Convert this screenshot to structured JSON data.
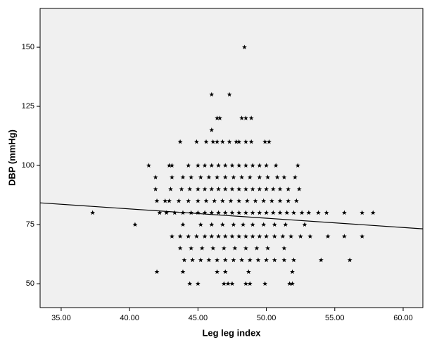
{
  "chart_data": {
    "type": "scatter",
    "x_label": "Leg leg index",
    "y_label": "DBP (mmHg)",
    "xlim": [
      33.46,
      61.44
    ],
    "ylim": [
      39.9,
      166.4
    ],
    "xticks": [
      {
        "value": 35,
        "label": "35.00"
      },
      {
        "value": 40,
        "label": "40.00"
      },
      {
        "value": 45,
        "label": "45.00"
      },
      {
        "value": 50,
        "label": "50.00"
      },
      {
        "value": 55,
        "label": "55.00"
      },
      {
        "value": 60,
        "label": "60.00"
      }
    ],
    "yticks": [
      50,
      75,
      100,
      125,
      150
    ],
    "color": "#000000",
    "background": "#f0f0f0",
    "x": [
      48.4,
      46.0,
      47.3,
      46.4,
      46.6,
      48.2,
      48.5,
      48.9,
      46.0,
      43.7,
      44.9,
      45.6,
      46.1,
      46.4,
      46.8,
      47.3,
      47.8,
      48.0,
      48.5,
      48.9,
      49.9,
      50.2,
      41.4,
      42.9,
      43.1,
      44.3,
      45.0,
      45.5,
      46.0,
      46.5,
      47.0,
      47.5,
      48.0,
      48.5,
      49.0,
      49.5,
      50.0,
      50.7,
      52.3,
      41.9,
      43.1,
      43.9,
      44.5,
      45.2,
      45.8,
      46.4,
      47.0,
      47.6,
      48.2,
      48.8,
      49.5,
      50.1,
      50.8,
      51.3,
      52.1,
      41.9,
      43.0,
      43.8,
      44.4,
      45.0,
      45.5,
      46.0,
      46.5,
      47.0,
      47.5,
      48.0,
      48.5,
      49.0,
      49.5,
      50.0,
      50.5,
      51.0,
      51.6,
      52.4,
      42.0,
      42.6,
      42.9,
      43.6,
      44.3,
      45.0,
      45.6,
      46.2,
      46.8,
      47.4,
      48.0,
      48.6,
      49.2,
      49.8,
      50.4,
      51.0,
      51.6,
      52.2,
      37.3,
      42.2,
      42.7,
      43.3,
      43.9,
      44.5,
      45.0,
      45.5,
      46.0,
      46.5,
      47.0,
      47.5,
      48.0,
      48.5,
      49.0,
      49.5,
      50.0,
      50.5,
      51.0,
      51.5,
      52.0,
      52.6,
      53.1,
      53.8,
      54.4,
      55.7,
      57.0,
      57.8,
      40.4,
      43.9,
      45.2,
      46.0,
      46.8,
      47.6,
      48.3,
      49.0,
      49.8,
      50.6,
      51.4,
      52.8,
      43.1,
      43.7,
      44.3,
      44.9,
      45.5,
      46.0,
      46.5,
      47.0,
      47.5,
      48.0,
      48.5,
      49.0,
      49.5,
      50.0,
      50.6,
      51.2,
      51.8,
      52.5,
      53.2,
      54.5,
      55.7,
      57.0,
      43.7,
      44.5,
      45.3,
      46.1,
      46.9,
      47.7,
      48.5,
      49.3,
      50.1,
      51.3,
      44.0,
      44.6,
      45.2,
      45.8,
      46.4,
      47.0,
      47.6,
      48.2,
      48.8,
      49.4,
      50.0,
      50.6,
      51.3,
      52.0,
      54.0,
      56.1,
      42.0,
      43.9,
      46.4,
      47.0,
      48.7,
      51.9,
      44.4,
      45.0,
      46.9,
      47.2,
      47.5,
      48.5,
      48.8,
      49.9,
      51.7,
      51.9
    ],
    "y": [
      150,
      130,
      130,
      120,
      120,
      120,
      120,
      120,
      115,
      110,
      110,
      110,
      110,
      110,
      110,
      110,
      110,
      110,
      110,
      110,
      110,
      110,
      100,
      100,
      100,
      100,
      100,
      100,
      100,
      100,
      100,
      100,
      100,
      100,
      100,
      100,
      100,
      100,
      100,
      95,
      95,
      95,
      95,
      95,
      95,
      95,
      95,
      95,
      95,
      95,
      95,
      95,
      95,
      95,
      95,
      90,
      90,
      90,
      90,
      90,
      90,
      90,
      90,
      90,
      90,
      90,
      90,
      90,
      90,
      90,
      90,
      90,
      90,
      90,
      85,
      85,
      85,
      85,
      85,
      85,
      85,
      85,
      85,
      85,
      85,
      85,
      85,
      85,
      85,
      85,
      85,
      85,
      80,
      80,
      80,
      80,
      80,
      80,
      80,
      80,
      80,
      80,
      80,
      80,
      80,
      80,
      80,
      80,
      80,
      80,
      80,
      80,
      80,
      80,
      80,
      80,
      80,
      80,
      80,
      80,
      75,
      75,
      75,
      75,
      75,
      75,
      75,
      75,
      75,
      75,
      75,
      75,
      70,
      70,
      70,
      70,
      70,
      70,
      70,
      70,
      70,
      70,
      70,
      70,
      70,
      70,
      70,
      70,
      70,
      70,
      70,
      70,
      70,
      70,
      65,
      65,
      65,
      65,
      65,
      65,
      65,
      65,
      65,
      65,
      60,
      60,
      60,
      60,
      60,
      60,
      60,
      60,
      60,
      60,
      60,
      60,
      60,
      60,
      60,
      60,
      55,
      55,
      55,
      55,
      55,
      55,
      50,
      50,
      50,
      50,
      50,
      50,
      50,
      50,
      50,
      50
    ],
    "fit_line": {
      "x": [
        33.46,
        61.44
      ],
      "y": [
        84.2,
        73.2
      ]
    }
  }
}
